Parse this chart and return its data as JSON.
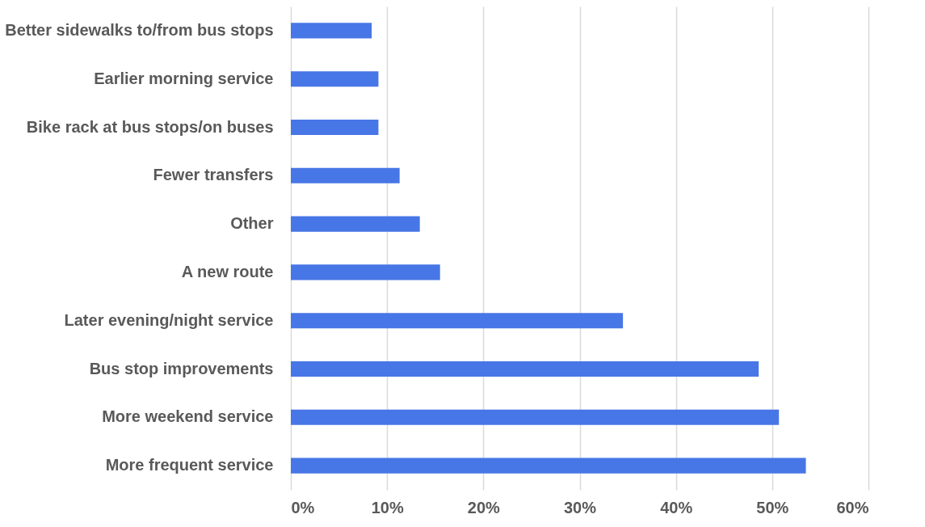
{
  "chart_data": {
    "type": "bar",
    "orientation": "horizontal",
    "categories": [
      "Better sidewalks to/from bus stops",
      "Earlier morning service",
      "Bike rack at bus stops/on buses",
      "Fewer transfers",
      "Other",
      "A new route",
      "Later evening/night service",
      "Bus stop improvements",
      "More weekend service",
      "More frequent service"
    ],
    "values": [
      8.4,
      9.1,
      9.1,
      11.3,
      13.4,
      15.5,
      34.5,
      48.6,
      50.7,
      53.5
    ],
    "color": "#4776e6",
    "xlim": [
      0,
      60
    ],
    "xticks": [
      {
        "value": 0,
        "label": "0%"
      },
      {
        "value": 10,
        "label": "10%"
      },
      {
        "value": 20,
        "label": "20%"
      },
      {
        "value": 30,
        "label": "30%"
      },
      {
        "value": 40,
        "label": "40%"
      },
      {
        "value": 50,
        "label": "50%"
      },
      {
        "value": 60,
        "label": "60%"
      }
    ],
    "grid": "x"
  }
}
